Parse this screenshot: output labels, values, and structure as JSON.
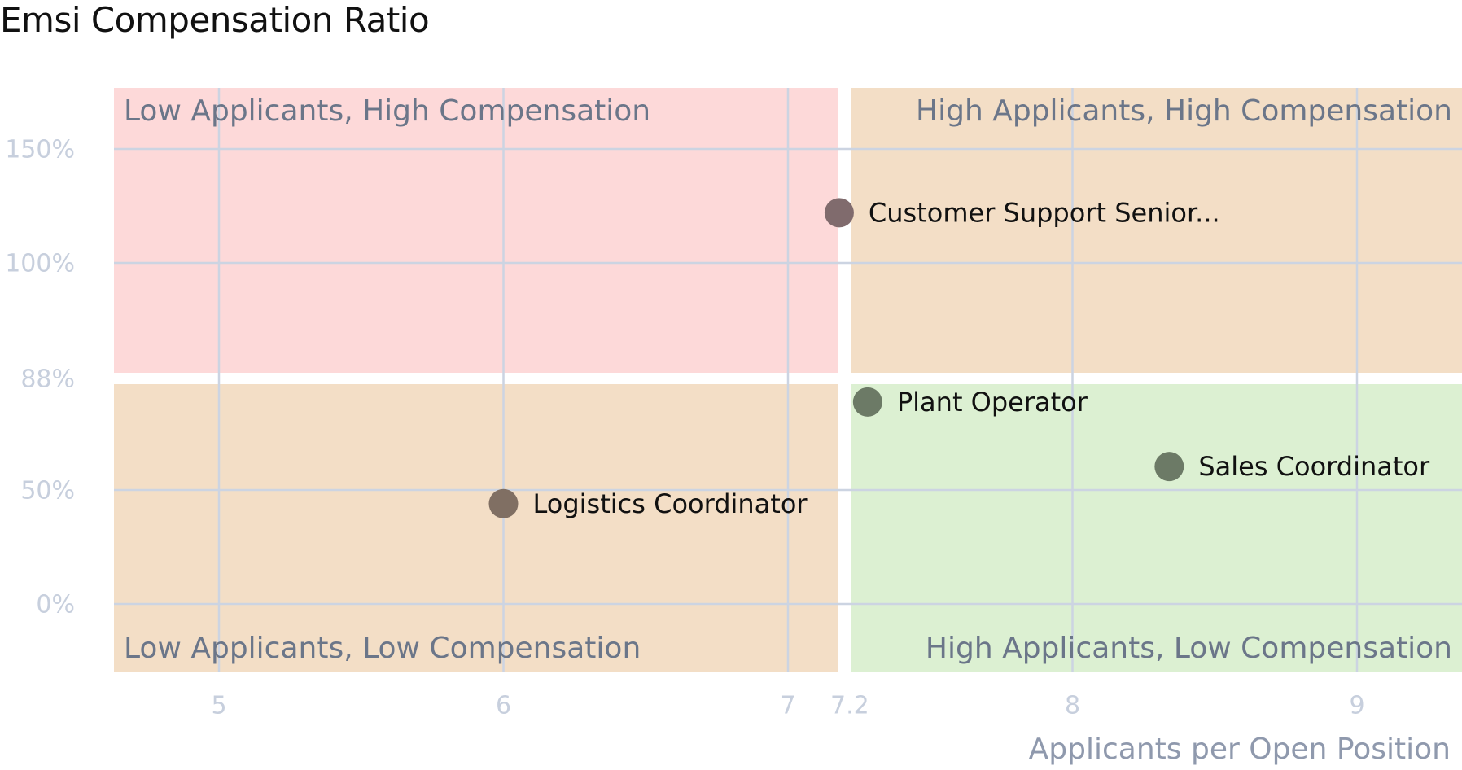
{
  "chart_data": {
    "type": "scatter",
    "title": "Emsi Compensation Ratio",
    "xlabel": "Applicants per Open Position",
    "ylabel": "",
    "x_ticks": [
      {
        "value": 5,
        "label": "5"
      },
      {
        "value": 6,
        "label": "6"
      },
      {
        "value": 7,
        "label": "7"
      },
      {
        "value": 7.2,
        "label": "7.2"
      },
      {
        "value": 8,
        "label": "8"
      },
      {
        "value": 9,
        "label": "9"
      }
    ],
    "y_ticks": [
      {
        "value": 0,
        "label": "0%"
      },
      {
        "value": 50,
        "label": "50%"
      },
      {
        "value": 88,
        "label": "88%"
      },
      {
        "value": 100,
        "label": "100%"
      },
      {
        "value": 150,
        "label": "150%"
      }
    ],
    "x_threshold": 7.2,
    "y_threshold": 88,
    "quadrants": {
      "top_left": {
        "label": "Low Applicants, High Compensation",
        "color": "#fdd9d9"
      },
      "top_right": {
        "label": "High Applicants, High Compensation",
        "color": "#f3dec6"
      },
      "bottom_left": {
        "label": "Low Applicants, Low Compensation",
        "color": "#f3dec6"
      },
      "bottom_right": {
        "label": "High Applicants, Low Compensation",
        "color": "#dcf0d2"
      }
    },
    "points": [
      {
        "label": "Customer Support Senior...",
        "x": 7.18,
        "y": 122,
        "color": "#806b6d"
      },
      {
        "label": "Plant Operator",
        "x": 7.28,
        "y": 80,
        "color": "#6c7a66"
      },
      {
        "label": "Sales Coordinator",
        "x": 8.34,
        "y": 58,
        "color": "#6c7a66"
      },
      {
        "label": "Logistics Coordinator",
        "x": 6.0,
        "y": 44,
        "color": "#806f63"
      }
    ],
    "grid": true
  }
}
